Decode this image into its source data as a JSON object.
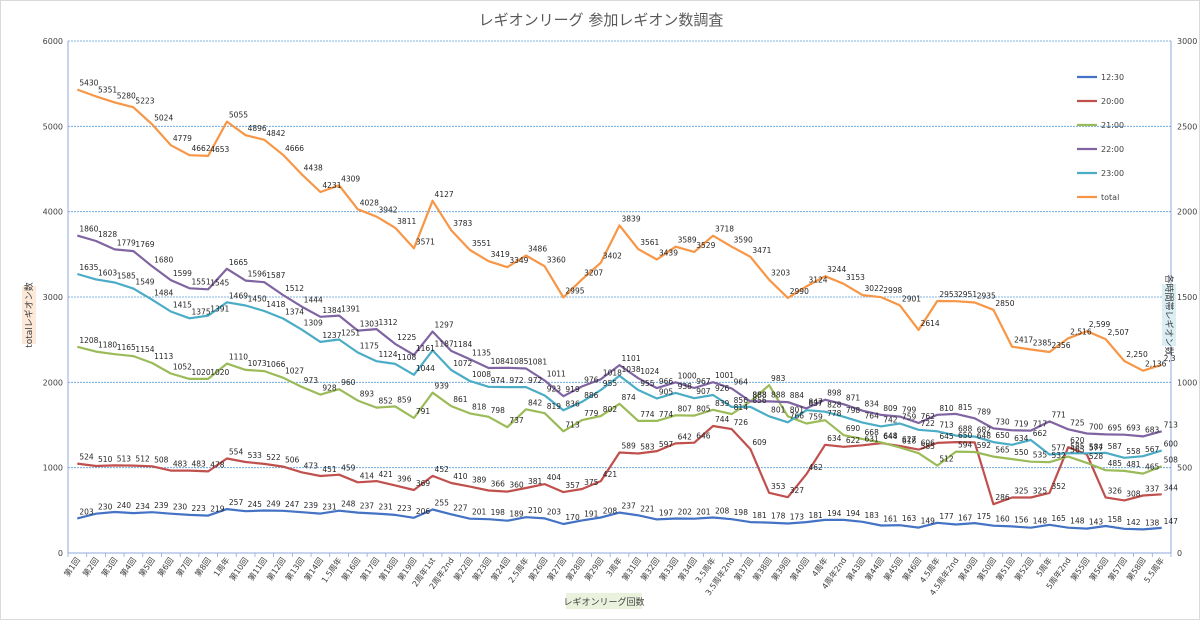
{
  "chart_data": {
    "type": "line",
    "title": "レギオンリーグ 参加レギオン数調査",
    "xlabel": "レギオンリーグ回数",
    "ylabel_left": "totalレギオン数",
    "ylabel_right": "各時間帯レギオン数",
    "ylim_left": [
      0,
      6000
    ],
    "ylim_right": [
      0,
      3000
    ],
    "yticks_left": [
      0,
      1000,
      2000,
      3000,
      4000,
      5000,
      6000
    ],
    "yticks_right": [
      0,
      500,
      1000,
      1500,
      2000,
      2500,
      3000
    ],
    "grid": true,
    "legend_position": "right",
    "categories": [
      "第1回",
      "第2回",
      "第3回",
      "第4回",
      "第5回",
      "第6回",
      "第7回",
      "第8回",
      "1周年",
      "第10回",
      "第11回",
      "第12回",
      "第13回",
      "第14回",
      "1.5周年",
      "第16回",
      "第17回",
      "第18回",
      "第19回",
      "2周年1st",
      "2周年2nd",
      "第22回",
      "第23回",
      "第24回",
      "2.5周年",
      "第26回",
      "第27回",
      "第28回",
      "第29回",
      "3周年",
      "第31回",
      "第32回",
      "第33回",
      "第34回",
      "3.5周年",
      "3.5周年2nd",
      "第37回",
      "第38回",
      "第39回",
      "第40回",
      "4周年",
      "4周年2nd",
      "第43回",
      "第44回",
      "第45回",
      "第46回",
      "4.5周年",
      "4.5周年2nd",
      "第49回",
      "第50回",
      "第51回",
      "第52回",
      "5周年",
      "5周年2nd",
      "第55回",
      "第56回",
      "第57回",
      "第58回",
      "5.5周年"
    ],
    "series": [
      {
        "name": "12:30",
        "axis": "right",
        "color": "#4472c4",
        "values": [
          203,
          230,
          240,
          234,
          239,
          230,
          223,
          219,
          257,
          245,
          249,
          247,
          239,
          231,
          248,
          237,
          231,
          223,
          206,
          255,
          227,
          201,
          198,
          189,
          210,
          203,
          170,
          191,
          208,
          237,
          221,
          197,
          202,
          201,
          208,
          198,
          181,
          178,
          173,
          181,
          194,
          194,
          183,
          161,
          163,
          149,
          177,
          167,
          175,
          160,
          156,
          148,
          165,
          148,
          143,
          158,
          142,
          138,
          147
        ]
      },
      {
        "name": "20:00",
        "axis": "right",
        "color": "#c0504d",
        "values": [
          524,
          510,
          513,
          512,
          508,
          483,
          483,
          478,
          554,
          533,
          522,
          506,
          473,
          451,
          459,
          414,
          421,
          396,
          369,
          452,
          410,
          389,
          366,
          360,
          381,
          404,
          357,
          375,
          421,
          589,
          583,
          597,
          642,
          646,
          744,
          726,
          609,
          353,
          327,
          462,
          634,
          622,
          631,
          644,
          627,
          606,
          645,
          650,
          648,
          286,
          325,
          325,
          352,
          620,
          577,
          326,
          308,
          337,
          344
        ]
      },
      {
        "name": "21:00",
        "axis": "right",
        "color": "#9bbb59",
        "values": [
          1208,
          1180,
          1165,
          1154,
          1113,
          1052,
          1020,
          1020,
          1110,
          1073,
          1066,
          1027,
          973,
          928,
          960,
          893,
          852,
          859,
          791,
          939,
          861,
          818,
          798,
          737,
          842,
          819,
          713,
          779,
          802,
          874,
          774,
          774,
          807,
          805,
          839,
          814,
          888,
          983,
          801,
          759,
          778,
          690,
          668,
          648,
          618,
          585,
          512,
          594,
          592,
          565,
          550,
          535,
          532,
          565,
          528,
          485,
          481,
          465,
          508
        ]
      },
      {
        "name": "22:00",
        "axis": "right",
        "color": "#8064a2",
        "values": [
          1860,
          1828,
          1779,
          1769,
          1680,
          1599,
          1551,
          1545,
          1665,
          1596,
          1587,
          1512,
          1444,
          1384,
          1391,
          1303,
          1312,
          1225,
          1161,
          1297,
          1184,
          1135,
          1084,
          1085,
          1081,
          1011,
          919,
          976,
          1018,
          1101,
          1024,
          966,
          1000,
          967,
          1001,
          964,
          888,
          888,
          884,
          847,
          898,
          871,
          834,
          809,
          799,
          762,
          810,
          815,
          789,
          730,
          719,
          717,
          771,
          725,
          700,
          695,
          693,
          683,
          713
        ]
      },
      {
        "name": "23:00",
        "axis": "right",
        "color": "#4bacc6",
        "values": [
          1635,
          1603,
          1585,
          1549,
          1484,
          1415,
          1375,
          1391,
          1469,
          1450,
          1418,
          1374,
          1309,
          1237,
          1251,
          1175,
          1124,
          1108,
          1044,
          1187,
          1072,
          1008,
          974,
          972,
          972,
          923,
          836,
          886,
          955,
          1038,
          955,
          905,
          938,
          907,
          926,
          856,
          856,
          801,
          766,
          837,
          828,
          798,
          764,
          742,
          759,
          722,
          713,
          688,
          682,
          650,
          634,
          662,
          577,
          585,
          584,
          587,
          558,
          567,
          600
        ]
      },
      {
        "name": "total",
        "axis": "left",
        "color": "#f79646",
        "values": [
          5430,
          5351,
          5280,
          5223,
          5024,
          4779,
          4662,
          4653,
          5055,
          4896,
          4842,
          4666,
          4438,
          4231,
          4309,
          4028,
          3942,
          3811,
          3571,
          4127,
          3783,
          3551,
          3419,
          3349,
          3486,
          3360,
          2995,
          3207,
          3402,
          3839,
          3561,
          3439,
          3589,
          3529,
          3718,
          3590,
          3471,
          3203,
          2990,
          3124,
          3244,
          3153,
          3022,
          2998,
          2901,
          2614,
          2953,
          2951,
          2935,
          2850,
          2417,
          2385,
          2356,
          2516,
          2599,
          2507,
          2250,
          2136,
          2206
        ]
      }
    ],
    "end_label_total": "2,3"
  }
}
